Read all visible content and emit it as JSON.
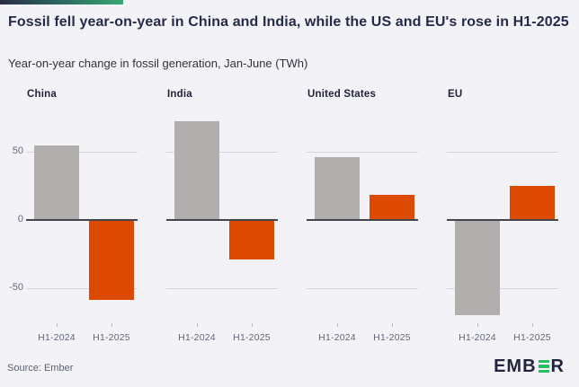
{
  "header": {
    "title": "Fossil fell year-on-year in China and India, while the US and EU's rose in H1-2025",
    "subtitle": "Year-on-year change in fossil generation, Jan-June (TWh)"
  },
  "chart_data": {
    "type": "bar",
    "title": "Fossil fell year-on-year in China and India, while the US and EU's rose in H1-2025",
    "subtitle": "Year-on-year change in fossil generation, Jan-June (TWh)",
    "unit": "TWh",
    "categories": [
      "H1-2024",
      "H1-2025"
    ],
    "panels": [
      {
        "label": "China",
        "values": [
          54,
          -59
        ]
      },
      {
        "label": "India",
        "values": [
          72,
          -29
        ]
      },
      {
        "label": "United States",
        "values": [
          46,
          18
        ]
      },
      {
        "label": "EU",
        "values": [
          -70,
          25
        ]
      }
    ],
    "series_colors": [
      {
        "name": "H1-2024",
        "color": "#b3aeae"
      },
      {
        "name": "H1-2025",
        "color": "#db4a00"
      }
    ],
    "yticks": [
      50,
      0,
      -50
    ],
    "ylim": [
      -80,
      82
    ],
    "grid": true,
    "legend": "none"
  },
  "footer": {
    "source": "Source: Ember",
    "logo": {
      "part1": "EMB",
      "part2": "R",
      "bar_e_color": "#25c063"
    }
  },
  "colors": {
    "background": "#f3f3f7",
    "title_text": "#252a49",
    "bar_gray": "#b3aeae",
    "bar_orange": "#db4a00",
    "axis_text": "#60687a",
    "gridline": "#d4d4df",
    "zero_line": "#45464d",
    "logo_green": "#25c063",
    "strip_gradient_start": "#282c47",
    "strip_gradient_end": "#3aa873"
  }
}
